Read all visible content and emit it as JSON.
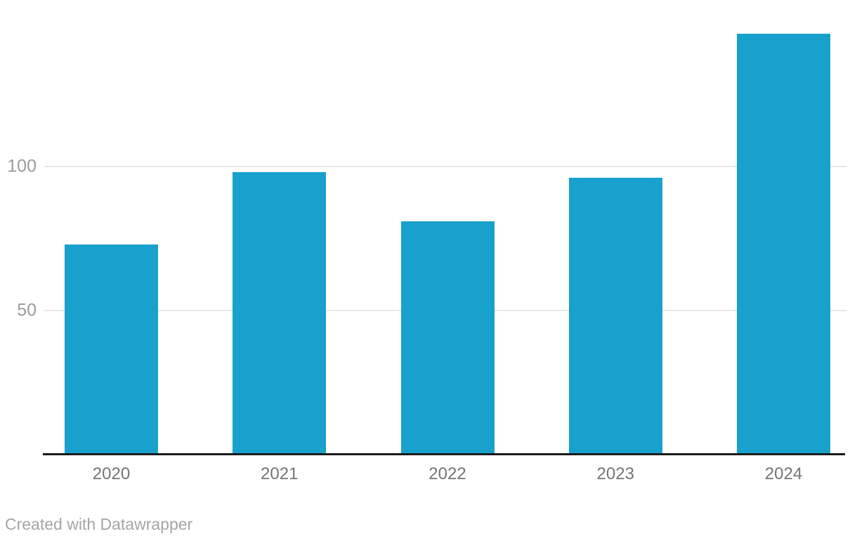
{
  "chart_data": {
    "type": "bar",
    "categories": [
      "2020",
      "2021",
      "2022",
      "2023",
      "2024"
    ],
    "values": [
      73,
      98,
      81,
      96,
      146
    ],
    "title": "",
    "xlabel": "",
    "ylabel": "",
    "ylim": [
      0,
      150
    ],
    "yticks": [
      50,
      100
    ],
    "grid": true,
    "legend_position": "none",
    "bar_color": "#18a1cd"
  },
  "footer": {
    "attribution": "Created with Datawrapper"
  },
  "colors": {
    "background": "#ffffff",
    "bar": "#18a1cd",
    "gridline": "#e8e8e8",
    "axis_line": "#1a1a1a",
    "y_tick_text": "#9b9b9b",
    "x_tick_text": "#757575",
    "attribution_text": "#a5a5a5"
  }
}
